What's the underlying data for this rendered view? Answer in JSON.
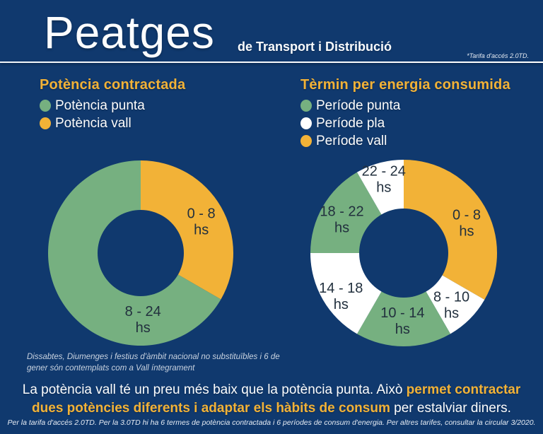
{
  "header": {
    "title": "Peatges",
    "subtitle": "de Transport i Distribució",
    "note": "*Tarifa d'accés 2.0TD."
  },
  "colors": {
    "background": "#10396E",
    "accent": "#F2B237",
    "green": "#76B080",
    "white": "#FFFFFF",
    "label_dark": "#22303E"
  },
  "left_section": {
    "heading": "Potència contractada",
    "legend": [
      {
        "label": "Potència punta",
        "color": "#76B080"
      },
      {
        "label": "Potència vall",
        "color": "#F2B237"
      }
    ],
    "footnote": "Dissabtes, Diumenges i festius d'àmbit nacional no substituïbles i 6 de gener són contemplats com a Vall íntegrament"
  },
  "right_section": {
    "heading": "Tèrmin per energia consumida",
    "legend": [
      {
        "label": "Període punta",
        "color": "#76B080"
      },
      {
        "label": "Període pla",
        "color": "#FFFFFF"
      },
      {
        "label": "Període vall",
        "color": "#F2B237"
      }
    ]
  },
  "chart_data": [
    {
      "type": "pie",
      "subtype": "donut",
      "title": "Potència contractada",
      "units": "hours of the day (total 24)",
      "legend_position": "top-left",
      "segments": [
        {
          "range": "0 - 8",
          "unit_label": "hs",
          "hours": 8,
          "series": "Potència vall",
          "color": "#F2B237",
          "label_angle": 62,
          "label_r": 97
        },
        {
          "range": "8 - 24",
          "unit_label": "hs",
          "hours": 16,
          "series": "Potència punta",
          "color": "#76B080",
          "label_angle": 178,
          "label_r": 93
        }
      ]
    },
    {
      "type": "pie",
      "subtype": "donut",
      "title": "Tèrmin per energia consumida",
      "units": "hours of the day (total 24)",
      "legend_position": "top-left",
      "segments": [
        {
          "range": "0 - 8",
          "unit_label": "hs",
          "hours": 8,
          "series": "Període vall",
          "color": "#F2B237",
          "label_angle": 64,
          "label_r": 99
        },
        {
          "range": "8 - 10",
          "unit_label": "hs",
          "hours": 2,
          "series": "Període pla",
          "color": "#FFFFFF",
          "label_angle": 137,
          "label_r": 99
        },
        {
          "range": "10 - 14",
          "unit_label": "hs",
          "hours": 4,
          "series": "Període punta",
          "color": "#76B080",
          "label_angle": 181,
          "label_r": 95
        },
        {
          "range": "14 - 18",
          "unit_label": "hs",
          "hours": 4,
          "series": "Període pla",
          "color": "#FFFFFF",
          "label_angle": 236,
          "label_r": 107
        },
        {
          "range": "18 - 22",
          "unit_label": "hs",
          "hours": 4,
          "series": "Període punta",
          "color": "#76B080",
          "label_angle": 299,
          "label_r": 100
        },
        {
          "range": "22 - 24",
          "unit_label": "hs",
          "hours": 2,
          "series": "Període pla",
          "color": "#FFFFFF",
          "label_angle": 345,
          "label_r": 109
        }
      ]
    }
  ],
  "bottom": {
    "line1_regular": "La potència vall té un preu més baix que la potència punta. Això ",
    "line1_bold": "permet contractar",
    "line2_bold": "dues potències diferents i adaptar els hàbits de consum",
    "line2_regular": " per estalviar diners.",
    "footer": "Per la tarifa d'accés 2.0TD. Per la 3.0TD hi ha 6 termes de potència contractada i 6 períodes de consum d'energia. Per altres tarifes, consultar la circular 3/2020."
  }
}
